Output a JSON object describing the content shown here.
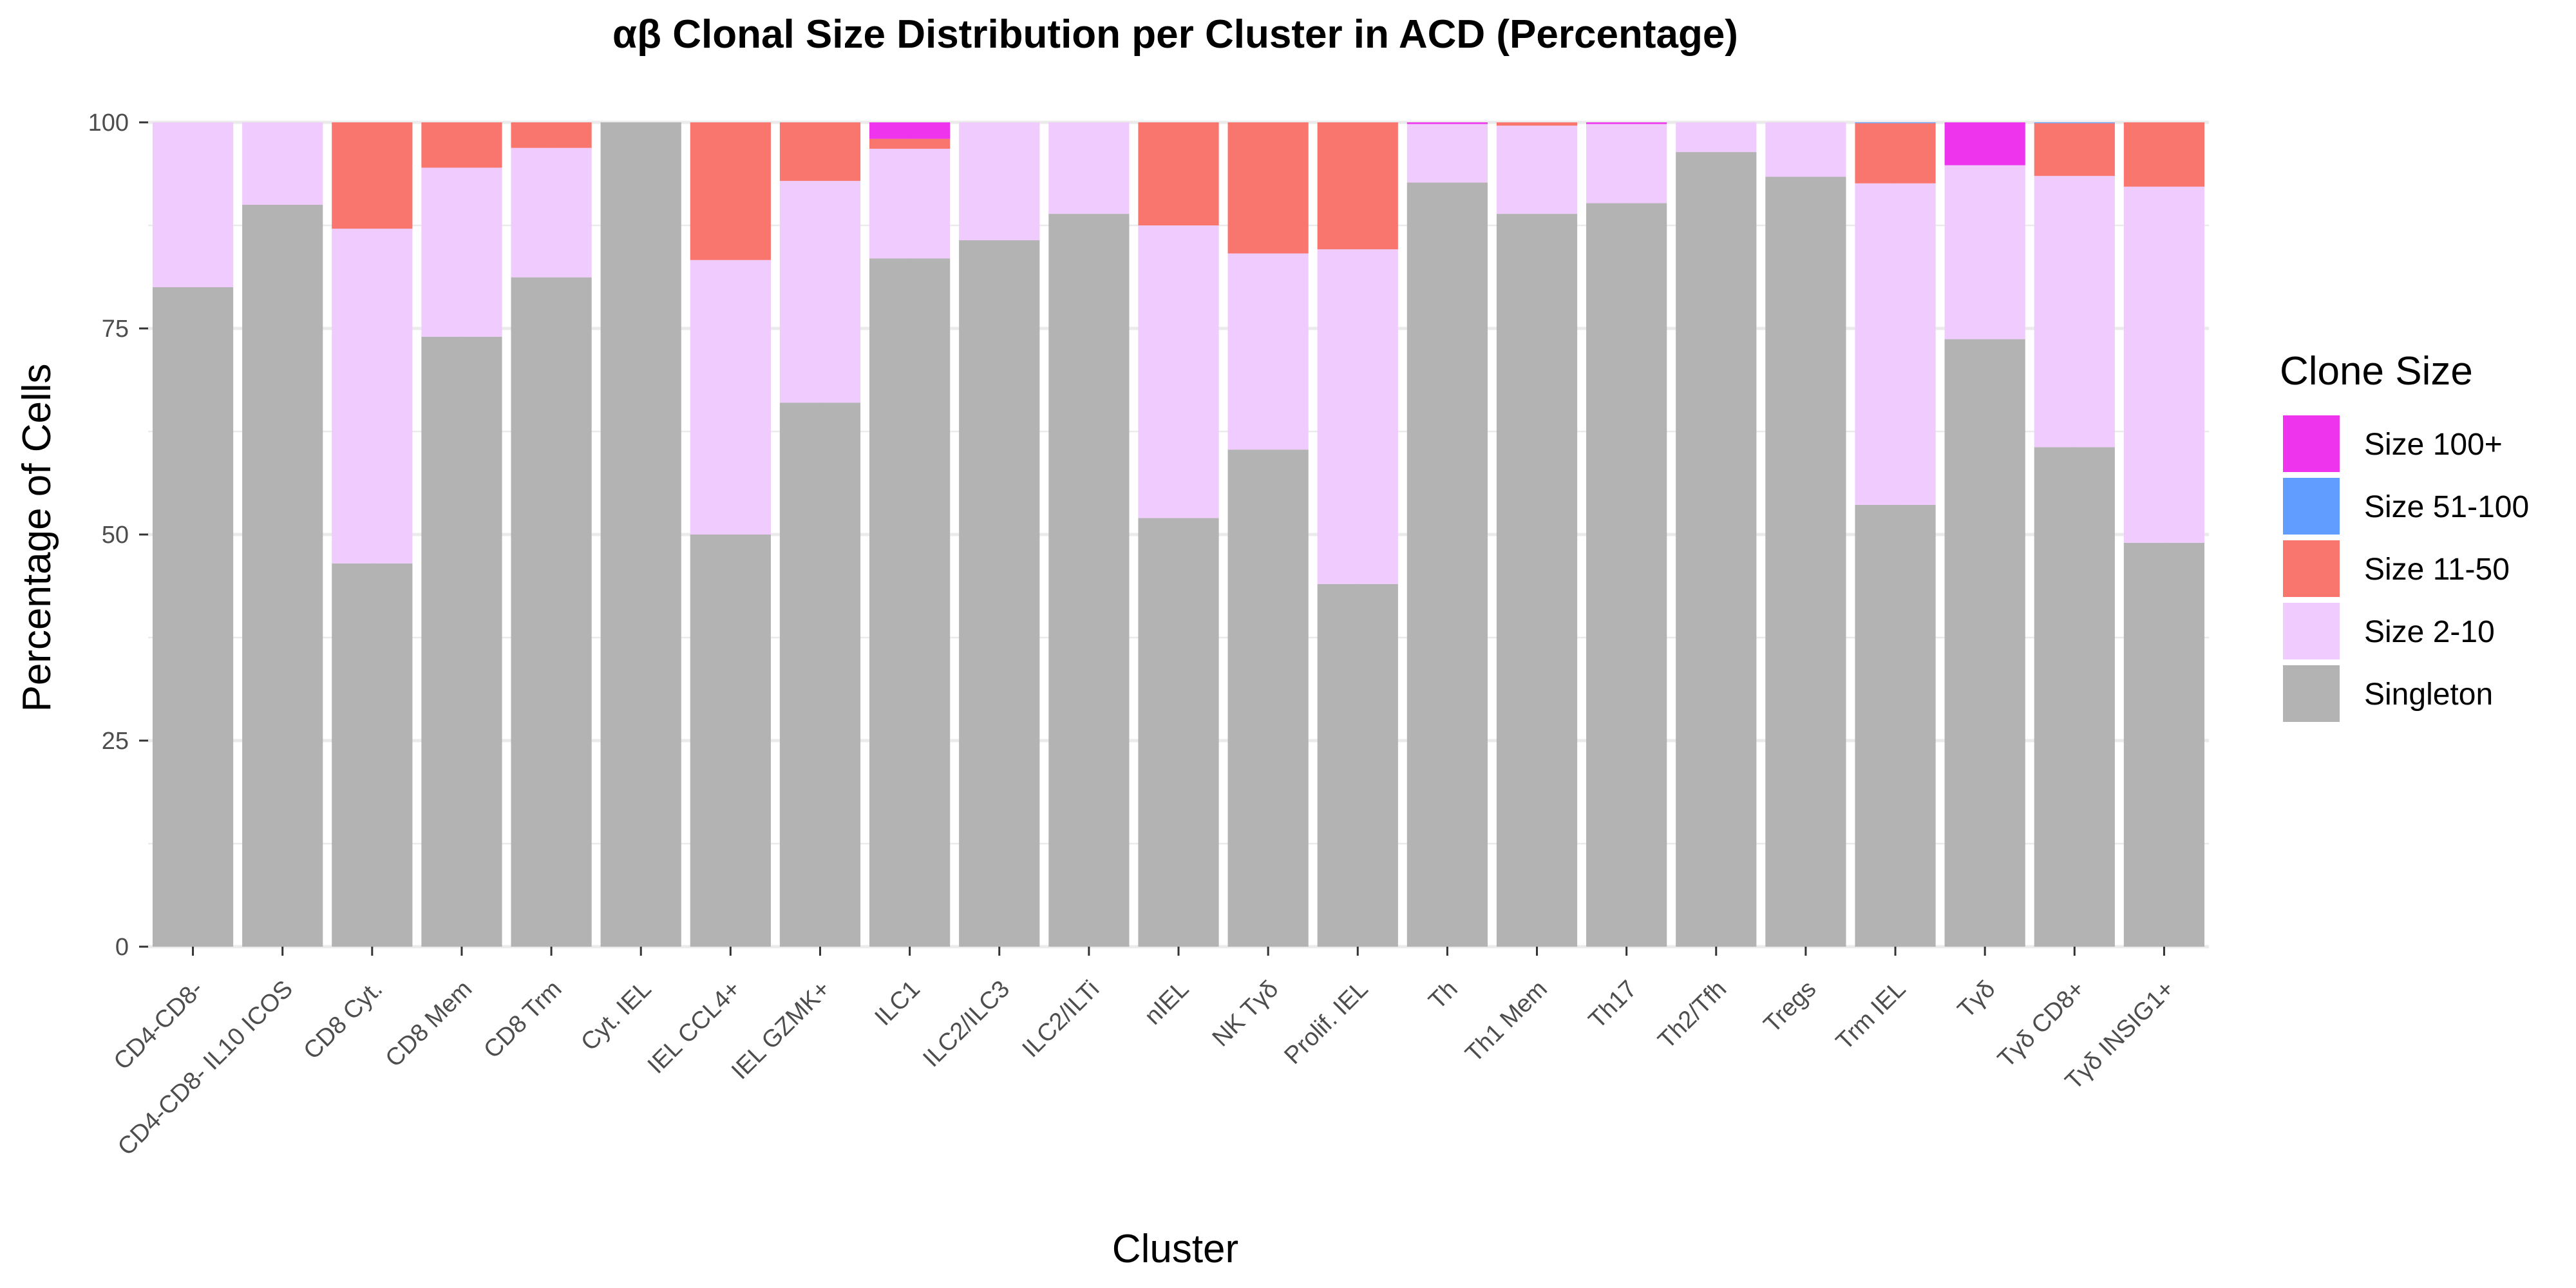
{
  "chart_data": {
    "type": "bar",
    "stacked": true,
    "title": "αβ Clonal Size Distribution per Cluster in ACD (Percentage)",
    "xlabel": "Cluster",
    "ylabel": "Percentage of Cells",
    "ylim": [
      0,
      100
    ],
    "yticks": [
      0,
      25,
      50,
      75,
      100
    ],
    "grid": true,
    "legend_title": "Clone Size",
    "legend_position": "right",
    "categories": [
      "CD4-CD8-",
      "CD4-CD8- IL10 ICOS",
      "CD8 Cyt.",
      "CD8 Mem",
      "CD8 Trm",
      "Cyt. IEL",
      "IEL CCL4+",
      "IEL GZMK+",
      "ILC1",
      "ILC2/ILC3",
      "ILC2/ILTi",
      "nIEL",
      "NK Tγδ",
      "Prolif. IEL",
      "Th",
      "Th1 Mem",
      "Th17",
      "Th2/Tfh",
      "Tregs",
      "Trm IEL",
      "Tγδ",
      "Tγδ CD8+",
      "Tγδ INSIG1+"
    ],
    "series": [
      {
        "name": "Singleton",
        "color": "#b3b3b3",
        "values": [
          80,
          90,
          46.5,
          74,
          81.2,
          100,
          50,
          66,
          83.5,
          85.7,
          88.9,
          52,
          60.3,
          44,
          92.7,
          88.9,
          90.2,
          96.4,
          93.4,
          53.6,
          73.7,
          60.6,
          49
        ]
      },
      {
        "name": "Size 2-10",
        "color": "#f0cbfe",
        "values": [
          20,
          10,
          40.6,
          20.5,
          15.7,
          0,
          33.3,
          26.9,
          13.3,
          14.3,
          11.1,
          35.5,
          23.8,
          40.6,
          7.1,
          10.7,
          9.6,
          3.6,
          6.6,
          39,
          21.1,
          32.9,
          43.2
        ]
      },
      {
        "name": "Size 11-50",
        "color": "#f8766d",
        "values": [
          0,
          0,
          12.9,
          5.5,
          3.1,
          0,
          16.7,
          7.1,
          1.2,
          0,
          0,
          12.5,
          15.9,
          15.4,
          0,
          0.4,
          0,
          0,
          0,
          7.3,
          0,
          6.4,
          7.8
        ]
      },
      {
        "name": "Size 51-100",
        "color": "#619cff",
        "values": [
          0,
          0,
          0,
          0,
          0,
          0,
          0,
          0,
          0,
          0,
          0,
          0,
          0,
          0,
          0,
          0,
          0,
          0,
          0,
          0.1,
          0,
          0.1,
          0
        ]
      },
      {
        "name": "Size 100+",
        "color": "#ee34ed",
        "values": [
          0,
          0,
          0,
          0,
          0,
          0,
          0,
          0,
          2,
          0,
          0,
          0,
          0,
          0,
          0.2,
          0,
          0.2,
          0,
          0,
          0,
          5.2,
          0,
          0
        ]
      }
    ],
    "legend_order": [
      "Size 100+",
      "Size 51-100",
      "Size 11-50",
      "Size 2-10",
      "Singleton"
    ]
  }
}
